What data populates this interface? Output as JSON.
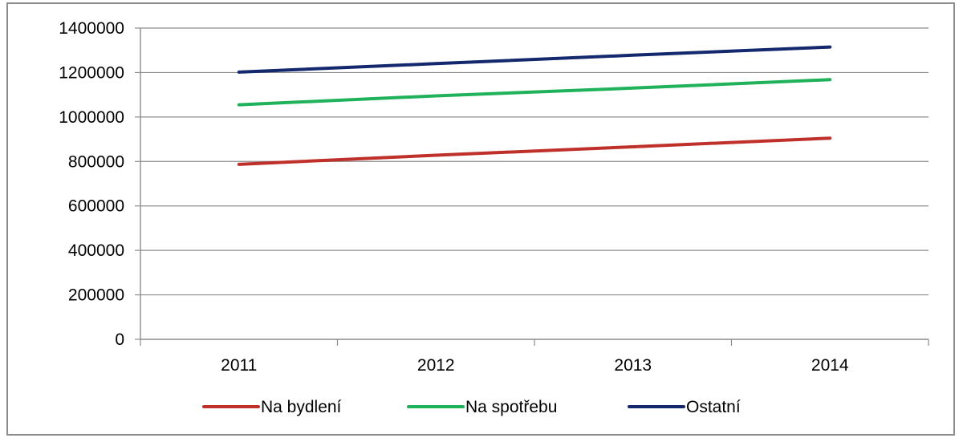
{
  "chart_data": {
    "type": "line",
    "title": "",
    "xlabel": "",
    "ylabel": "",
    "categories": [
      "2011",
      "2012",
      "2013",
      "2014"
    ],
    "ylim": [
      0,
      1400000
    ],
    "yticks": [
      0,
      200000,
      400000,
      600000,
      800000,
      1000000,
      1200000,
      1400000
    ],
    "grid": true,
    "legend_position": "bottom",
    "series": [
      {
        "name": "Na bydlení",
        "color": "#c0302b",
        "values": [
          787000,
          828000,
          866000,
          905000
        ]
      },
      {
        "name": "Na spotřebu",
        "color": "#1fb25a",
        "values": [
          1055000,
          1095000,
          1130000,
          1168000
        ]
      },
      {
        "name": "Ostatní",
        "color": "#14286e",
        "values": [
          1202000,
          1240000,
          1278000,
          1315000
        ]
      }
    ]
  }
}
